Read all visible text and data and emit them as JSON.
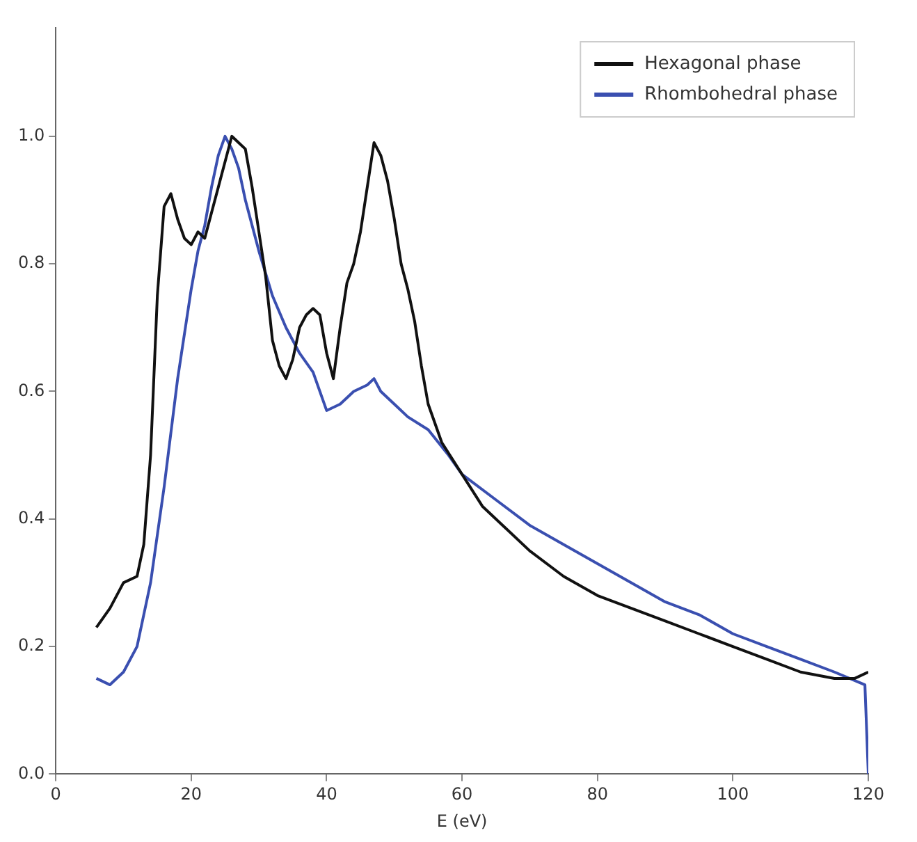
{
  "chart_data": {
    "type": "line",
    "xlabel": "E (eV)",
    "xlim": [
      0,
      120
    ],
    "xticks": [
      0,
      20,
      40,
      60,
      80,
      100,
      120
    ],
    "ylim": [
      0,
      1.17
    ],
    "yticks": [
      {
        "value": 0,
        "label": "0.0"
      },
      {
        "value": 0.2,
        "label": "0.2"
      },
      {
        "value": 0.4,
        "label": "0.4"
      },
      {
        "value": 0.6,
        "label": "0.6"
      },
      {
        "value": 0.8,
        "label": "0.8"
      },
      {
        "value": 1,
        "label": "1.0"
      }
    ],
    "grid": false,
    "legend": "top right",
    "marker": "none",
    "line_style": "solid",
    "series": [
      {
        "name": "Hexagonal phase",
        "color": "#111111",
        "x": [
          6,
          8,
          10,
          12,
          13,
          14,
          15,
          16,
          17,
          18,
          19,
          20,
          21,
          22,
          23,
          24,
          25,
          26,
          27,
          28,
          29,
          30,
          31,
          32,
          33,
          34,
          35,
          36,
          37,
          38,
          39,
          40,
          41,
          42,
          43,
          44,
          45,
          46,
          47,
          48,
          49,
          50,
          51,
          52,
          53,
          54,
          55,
          57,
          60,
          63,
          66,
          70,
          75,
          80,
          85,
          90,
          95,
          100,
          105,
          110,
          115,
          118,
          120
        ],
        "values": [
          0.23,
          0.26,
          0.3,
          0.31,
          0.36,
          0.5,
          0.75,
          0.89,
          0.91,
          0.87,
          0.84,
          0.83,
          0.85,
          0.84,
          0.88,
          0.92,
          0.96,
          1.0,
          0.99,
          0.98,
          0.92,
          0.85,
          0.78,
          0.68,
          0.64,
          0.62,
          0.65,
          0.7,
          0.72,
          0.73,
          0.72,
          0.66,
          0.62,
          0.7,
          0.77,
          0.8,
          0.85,
          0.92,
          0.99,
          0.97,
          0.93,
          0.87,
          0.8,
          0.76,
          0.71,
          0.64,
          0.58,
          0.52,
          0.47,
          0.42,
          0.39,
          0.35,
          0.31,
          0.28,
          0.26,
          0.24,
          0.22,
          0.2,
          0.18,
          0.16,
          0.15,
          0.15,
          0.16
        ]
      },
      {
        "name": "Rhombohedral phase",
        "color": "#3a4fb0",
        "x": [
          6,
          8,
          10,
          12,
          14,
          16,
          18,
          20,
          21,
          22,
          23,
          24,
          25,
          26,
          27,
          28,
          30,
          32,
          34,
          36,
          38,
          40,
          42,
          44,
          46,
          47,
          48,
          50,
          52,
          55,
          58,
          60,
          65,
          70,
          75,
          80,
          85,
          90,
          95,
          100,
          105,
          110,
          115,
          119.5,
          120
        ],
        "values": [
          0.15,
          0.14,
          0.16,
          0.2,
          0.3,
          0.45,
          0.62,
          0.76,
          0.82,
          0.86,
          0.92,
          0.97,
          1.0,
          0.98,
          0.95,
          0.9,
          0.82,
          0.75,
          0.7,
          0.66,
          0.63,
          0.57,
          0.58,
          0.6,
          0.61,
          0.62,
          0.6,
          0.58,
          0.56,
          0.54,
          0.5,
          0.47,
          0.43,
          0.39,
          0.36,
          0.33,
          0.3,
          0.27,
          0.25,
          0.22,
          0.2,
          0.18,
          0.16,
          0.14,
          0.0
        ]
      }
    ]
  }
}
